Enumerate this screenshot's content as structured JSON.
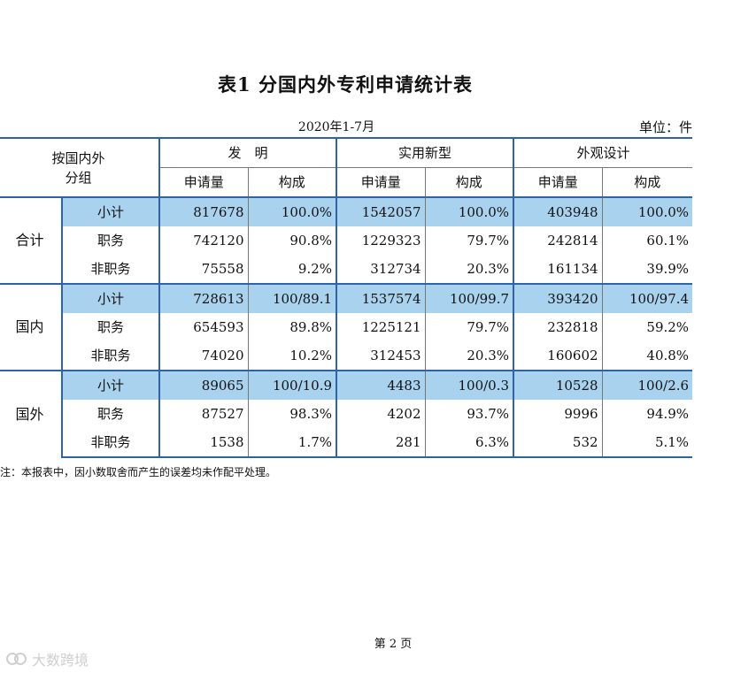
{
  "title": "表1  分国内外专利申请统计表",
  "period": "2020年1-7月",
  "unit": "单位：件",
  "header": {
    "group_col": [
      "按国内外",
      "分组"
    ],
    "categories": [
      "发　明",
      "实用新型",
      "外观设计"
    ],
    "subcols": [
      "申请量",
      "构成"
    ]
  },
  "groups": [
    {
      "name": "合计",
      "rows": [
        {
          "label": "小计",
          "values": [
            "817678",
            "100.0%",
            "1542057",
            "100.0%",
            "403948",
            "100.0%"
          ]
        },
        {
          "label": "职务",
          "values": [
            "742120",
            "90.8%",
            "1229323",
            "79.7%",
            "242814",
            "60.1%"
          ]
        },
        {
          "label": "非职务",
          "values": [
            "75558",
            "9.2%",
            "312734",
            "20.3%",
            "161134",
            "39.9%"
          ]
        }
      ]
    },
    {
      "name": "国内",
      "rows": [
        {
          "label": "小计",
          "values": [
            "728613",
            "100/89.1",
            "1537574",
            "100/99.7",
            "393420",
            "100/97.4"
          ]
        },
        {
          "label": "职务",
          "values": [
            "654593",
            "89.8%",
            "1225121",
            "79.7%",
            "232818",
            "59.2%"
          ]
        },
        {
          "label": "非职务",
          "values": [
            "74020",
            "10.2%",
            "312453",
            "20.3%",
            "160602",
            "40.8%"
          ]
        }
      ]
    },
    {
      "name": "国外",
      "rows": [
        {
          "label": "小计",
          "values": [
            "89065",
            "100/10.9",
            "4483",
            "100/0.3",
            "10528",
            "100/2.6"
          ]
        },
        {
          "label": "职务",
          "values": [
            "87527",
            "98.3%",
            "4202",
            "93.7%",
            "9996",
            "94.9%"
          ]
        },
        {
          "label": "非职务",
          "values": [
            "1538",
            "1.7%",
            "281",
            "6.3%",
            "532",
            "5.1%"
          ]
        }
      ]
    }
  ],
  "note": "注：本报表中，因小数取舍而产生的误差均未作配平处理。",
  "page_number": "第 2 页",
  "watermark": "大数跨境",
  "colors": {
    "rule": "#2e63a8",
    "subtotal_fill": "#a9d2ef"
  }
}
